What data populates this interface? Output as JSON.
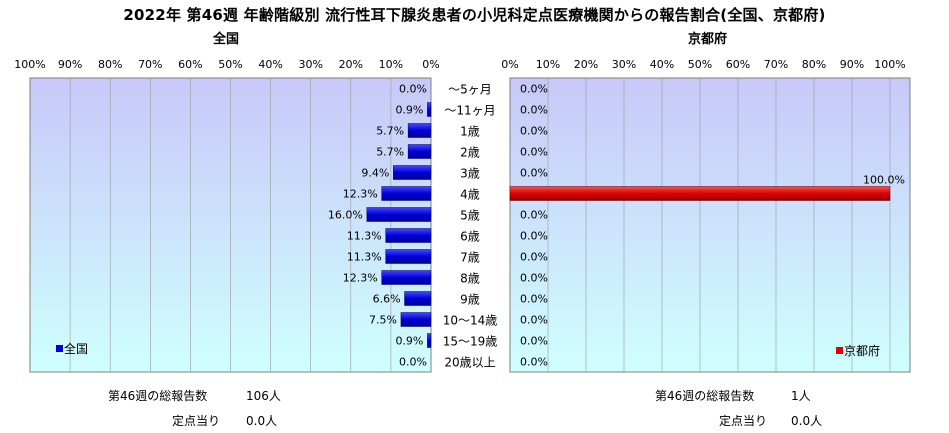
{
  "title": "2022年 第46週 年齢階級別 流行性耳下腺炎患者の小児科定点医療機関からの報告割合(全国、京都府)",
  "chart_data": [
    {
      "type": "bar",
      "orientation": "horizontal",
      "direction": "right-to-left",
      "title": "全国",
      "legend": "全国",
      "legend_position": "bottom-left",
      "color": "#0000d8",
      "xlim": [
        0,
        100
      ],
      "ticks": [
        "100%",
        "90%",
        "80%",
        "70%",
        "60%",
        "50%",
        "40%",
        "30%",
        "20%",
        "10%",
        "0%"
      ],
      "categories": [
        "～5ヶ月",
        "～11ヶ月",
        "1歳",
        "2歳",
        "3歳",
        "4歳",
        "5歳",
        "6歳",
        "7歳",
        "8歳",
        "9歳",
        "10～14歳",
        "15～19歳",
        "20歳以上"
      ],
      "values": [
        0.0,
        0.9,
        5.7,
        5.7,
        9.4,
        12.3,
        16.0,
        11.3,
        11.3,
        12.3,
        6.6,
        7.5,
        0.9,
        0.0
      ],
      "labels": [
        "0.0%",
        "0.9%",
        "5.7%",
        "5.7%",
        "9.4%",
        "12.3%",
        "16.0%",
        "11.3%",
        "11.3%",
        "12.3%",
        "6.6%",
        "7.5%",
        "0.9%",
        "0.0%"
      ],
      "grid": true
    },
    {
      "type": "bar",
      "orientation": "horizontal",
      "direction": "left-to-right",
      "title": "京都府",
      "legend": "京都府",
      "legend_position": "bottom-right",
      "color": "#e00000",
      "xlim": [
        0,
        100
      ],
      "ticks": [
        "0%",
        "10%",
        "20%",
        "30%",
        "40%",
        "50%",
        "60%",
        "70%",
        "80%",
        "90%",
        "100%"
      ],
      "categories": [
        "～5ヶ月",
        "～11ヶ月",
        "1歳",
        "2歳",
        "3歳",
        "4歳",
        "5歳",
        "6歳",
        "7歳",
        "8歳",
        "9歳",
        "10～14歳",
        "15～19歳",
        "20歳以上"
      ],
      "values": [
        0.0,
        0.0,
        0.0,
        0.0,
        0.0,
        100.0,
        0.0,
        0.0,
        0.0,
        0.0,
        0.0,
        0.0,
        0.0,
        0.0
      ],
      "labels": [
        "0.0%",
        "0.0%",
        "0.0%",
        "0.0%",
        "0.0%",
        "100.0%",
        "0.0%",
        "0.0%",
        "0.0%",
        "0.0%",
        "0.0%",
        "0.0%",
        "0.0%",
        "0.0%"
      ],
      "grid": true
    }
  ],
  "footer": {
    "national": {
      "total_label": "第46週の総報告数",
      "total_value": "106人",
      "per_label": "定点当り",
      "per_value": "0.0人"
    },
    "kyoto": {
      "total_label": "第46週の総報告数",
      "total_value": "1人",
      "per_label": "定点当り",
      "per_value": "0.0人"
    }
  }
}
